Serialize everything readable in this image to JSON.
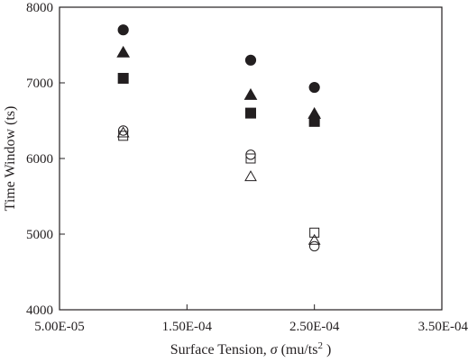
{
  "chart_data": {
    "type": "scatter",
    "title": "",
    "xlabel": {
      "prefix": "Surface Tension, ",
      "symbol": "σ",
      "unit_open": " (mu/ts",
      "unit_sup": "2",
      "unit_close": " )"
    },
    "ylabel": "Time Window (ts)",
    "xlim": [
      5e-05,
      0.00035
    ],
    "ylim": [
      4000,
      8000
    ],
    "x_ticks": [
      5e-05,
      0.00015,
      0.00025,
      0.00035
    ],
    "x_tick_labels": [
      "5.00E-05",
      "1.50E-04",
      "2.50E-04",
      "3.50E-04"
    ],
    "y_ticks": [
      4000,
      5000,
      6000,
      7000,
      8000
    ],
    "y_tick_labels": [
      "4000",
      "5000",
      "6000",
      "7000",
      "8000"
    ],
    "grid": false,
    "legend": "none",
    "color": "#231f20",
    "series": [
      {
        "marker": "circle",
        "filled": true,
        "x": [
          0.0001,
          0.0002,
          0.00025
        ],
        "y": [
          7700,
          7300,
          6940
        ]
      },
      {
        "marker": "triangle",
        "filled": true,
        "x": [
          0.0001,
          0.0002,
          0.00025
        ],
        "y": [
          7400,
          6840,
          6590
        ]
      },
      {
        "marker": "square",
        "filled": true,
        "x": [
          0.0001,
          0.0002,
          0.00025
        ],
        "y": [
          7060,
          6600,
          6490
        ]
      },
      {
        "marker": "circle",
        "filled": false,
        "x": [
          0.0001,
          0.0002,
          0.00025
        ],
        "y": [
          6370,
          6050,
          4840
        ]
      },
      {
        "marker": "triangle",
        "filled": false,
        "x": [
          0.0001,
          0.0002,
          0.00025
        ],
        "y": [
          6340,
          5760,
          4920
        ]
      },
      {
        "marker": "square",
        "filled": false,
        "x": [
          0.0001,
          0.0002,
          0.00025
        ],
        "y": [
          6300,
          6000,
          5020
        ]
      }
    ]
  }
}
